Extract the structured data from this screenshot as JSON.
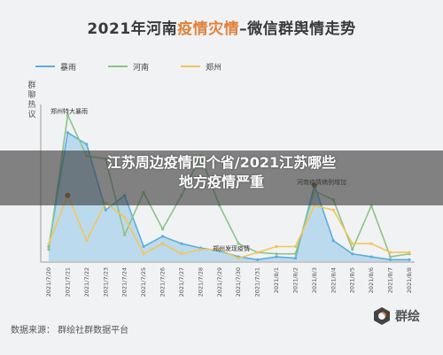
{
  "header": {
    "title_pre": "2021年河南",
    "title_hl": "疫情灾情",
    "title_post": "–微信群舆情走势"
  },
  "overlay": {
    "line1": "江苏周边疫情四个省/2021江苏哪些",
    "line2": "地方疫情严重"
  },
  "footer": {
    "source": "数据来源： 群绘社群数据平台",
    "brand": "群绘"
  },
  "colors": {
    "baoyu": "#5aaee0",
    "henan": "#8cc38a",
    "zhengzhou": "#f2c55c",
    "accent": "#e0813a"
  },
  "chart_data": {
    "type": "line",
    "ylabel": "群聊热议",
    "legend_position": "top-left",
    "grid": false,
    "categories": [
      "2021/7/20",
      "2021/7/21",
      "2021/7/22",
      "2021/7/23",
      "2021/7/24",
      "2021/7/25",
      "2021/7/26",
      "2021/7/27",
      "2021/7/28",
      "2021/7/29",
      "2021/7/30",
      "2021/7/31",
      "2021/8/1",
      "2021/8/2",
      "2021/8/3",
      "2021/8/4",
      "2021/8/5",
      "2021/8/6",
      "2021/8/7",
      "2021/8/8"
    ],
    "series": [
      {
        "name": "暴雨",
        "color": "#5aaee0",
        "area": true,
        "values": [
          10,
          88,
          80,
          35,
          45,
          10,
          17,
          12,
          9,
          7,
          3,
          1,
          3,
          2,
          52,
          14,
          5,
          3,
          1,
          1
        ]
      },
      {
        "name": "河南",
        "color": "#8cc38a",
        "area": false,
        "values": [
          8,
          100,
          72,
          70,
          18,
          47,
          22,
          45,
          72,
          38,
          12,
          6,
          5,
          5,
          48,
          42,
          8,
          38,
          3,
          5
        ]
      },
      {
        "name": "郑州",
        "color": "#f2c55c",
        "area": false,
        "values": [
          12,
          45,
          14,
          40,
          30,
          5,
          12,
          5,
          8,
          8,
          2,
          6,
          10,
          10,
          38,
          35,
          12,
          12,
          6,
          6
        ]
      }
    ],
    "annotations": [
      {
        "text": "郑州特大暴雨"
      },
      {
        "text": "河南疫情病例增加"
      },
      {
        "text": "郑州发现疫情"
      }
    ]
  }
}
